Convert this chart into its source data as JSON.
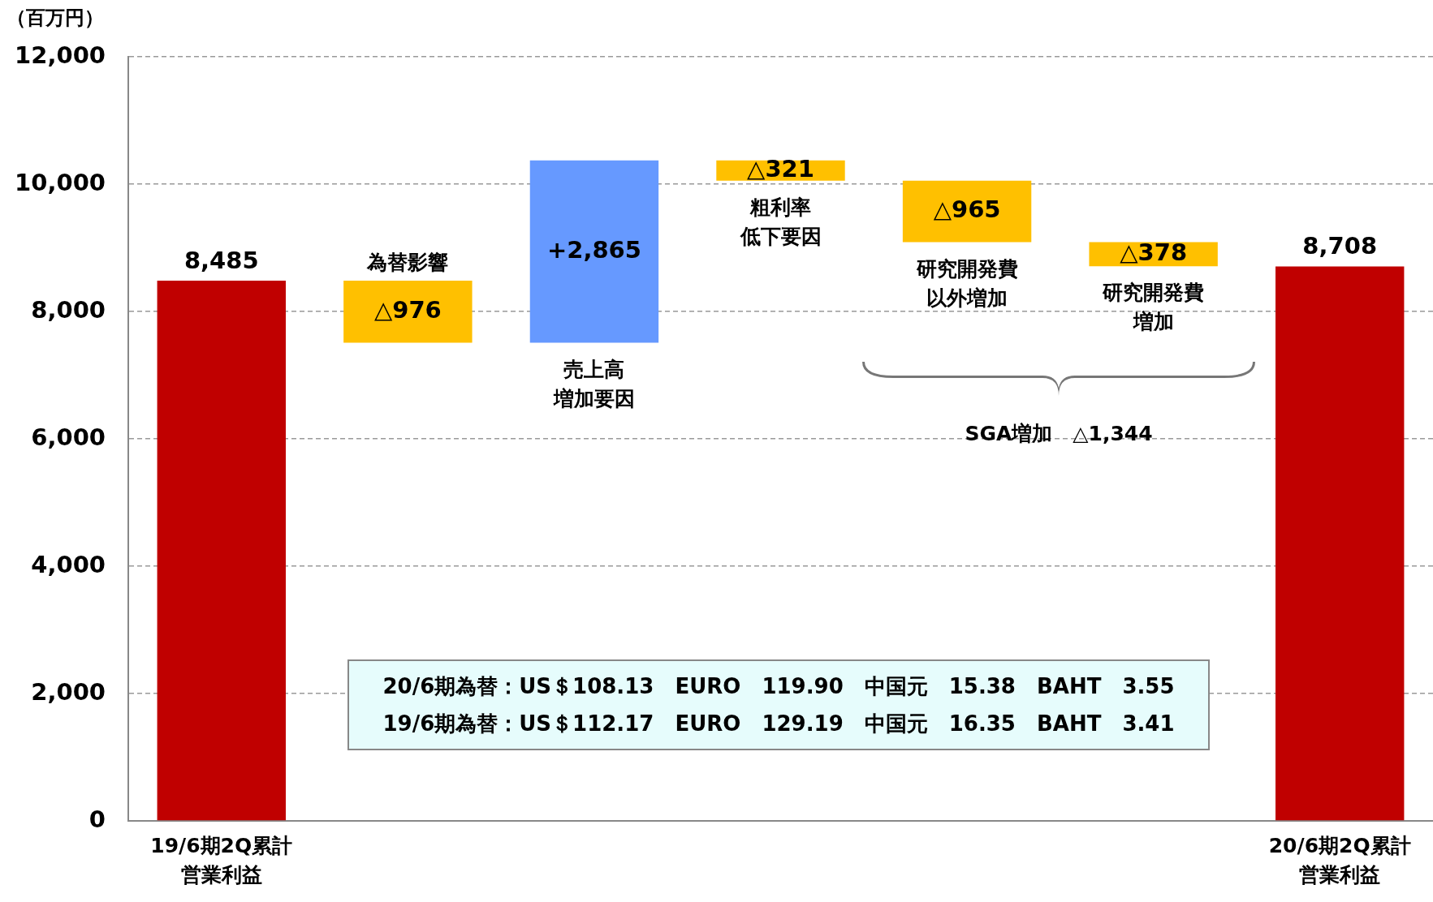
{
  "chart_data": {
    "type": "bar",
    "ylabel": "（百万円）",
    "categories": [
      "19/6期2Q累計営業利益",
      "為替影響",
      "売上高増加要因",
      "粗利率低下要因",
      "研究開発費以外増加",
      "研究開発費増加",
      "20/6期2Q累計営業利益"
    ],
    "base": [
      0,
      8485,
      7509,
      10374,
      10053,
      9088,
      0
    ],
    "values": [
      8485,
      -976,
      2865,
      -321,
      -965,
      -378,
      8708
    ],
    "value_labels": [
      "8,485",
      "△976",
      "+2,865",
      "△321",
      "△965",
      "△378",
      "8,708"
    ],
    "colors": [
      "#c00000",
      "#ffc000",
      "#6699ff",
      "#ffc000",
      "#ffc000",
      "#ffc000",
      "#c00000"
    ],
    "ylim": [
      0,
      12000
    ],
    "yticks": [
      {
        "value": 0,
        "label": "0"
      },
      {
        "value": 2000,
        "label": "2,000"
      },
      {
        "value": 4000,
        "label": "4,000"
      },
      {
        "value": 6000,
        "label": "6,000"
      },
      {
        "value": 8000,
        "label": "8,000"
      },
      {
        "value": 10000,
        "label": "10,000"
      },
      {
        "value": 12000,
        "label": "12,000"
      }
    ],
    "grid": "y",
    "legend": false,
    "annotations": [
      "SGA増加　△1,344",
      "20/6期為替：US＄108.13　EURO　119.90　中国元　15.38　BAHT　3.55",
      "19/6期為替：US＄112.17　EURO　129.19　中国元　16.35　BAHT　3.41"
    ]
  }
}
